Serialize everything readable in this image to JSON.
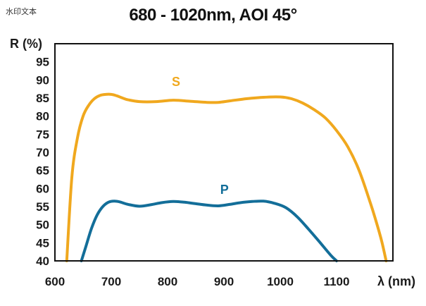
{
  "watermark": "水印文本",
  "chart_data": {
    "type": "line",
    "title": "680 - 1020nm, AOI 45°",
    "xlabel": "λ (nm)",
    "ylabel": "R (%)",
    "xlim": [
      600,
      1200
    ],
    "ylim": [
      40,
      100
    ],
    "x_ticks": [
      "600",
      "700",
      "800",
      "900",
      "1000",
      "1100"
    ],
    "y_ticks": [
      "40",
      "45",
      "50",
      "55",
      "60",
      "65",
      "70",
      "75",
      "80",
      "85",
      "90",
      "95"
    ],
    "grid": false,
    "series": [
      {
        "name": "S",
        "color": "#f0a81e",
        "x": [
          621,
          630,
          640,
          650,
          660,
          670,
          680,
          690,
          700,
          710,
          720,
          730,
          750,
          780,
          810,
          840,
          870,
          890,
          910,
          940,
          970,
          1000,
          1020,
          1040,
          1060,
          1080,
          1100,
          1120,
          1140,
          1160,
          1170,
          1180,
          1188
        ],
        "y": [
          40,
          63,
          74,
          80,
          83,
          84.8,
          85.7,
          86,
          86,
          85.6,
          85,
          84.5,
          84,
          84,
          84.4,
          84.1,
          83.8,
          83.8,
          84.2,
          84.8,
          85.2,
          85.3,
          84.8,
          83.6,
          81.8,
          79.5,
          76,
          71.5,
          65,
          56,
          51,
          45.5,
          40
        ]
      },
      {
        "name": "P",
        "color": "#136e99",
        "x": [
          647,
          655,
          665,
          675,
          685,
          695,
          705,
          715,
          730,
          750,
          770,
          790,
          810,
          830,
          850,
          870,
          890,
          910,
          930,
          950,
          970,
          990,
          1010,
          1030,
          1050,
          1070,
          1090,
          1100
        ],
        "y": [
          40,
          44,
          49,
          52.7,
          55,
          56.2,
          56.5,
          56.3,
          55.6,
          55.1,
          55.5,
          56.1,
          56.4,
          56.2,
          55.8,
          55.4,
          55.2,
          55.6,
          56.1,
          56.4,
          56.5,
          55.9,
          54.7,
          52.2,
          48.8,
          45.2,
          41.5,
          40
        ]
      }
    ]
  }
}
